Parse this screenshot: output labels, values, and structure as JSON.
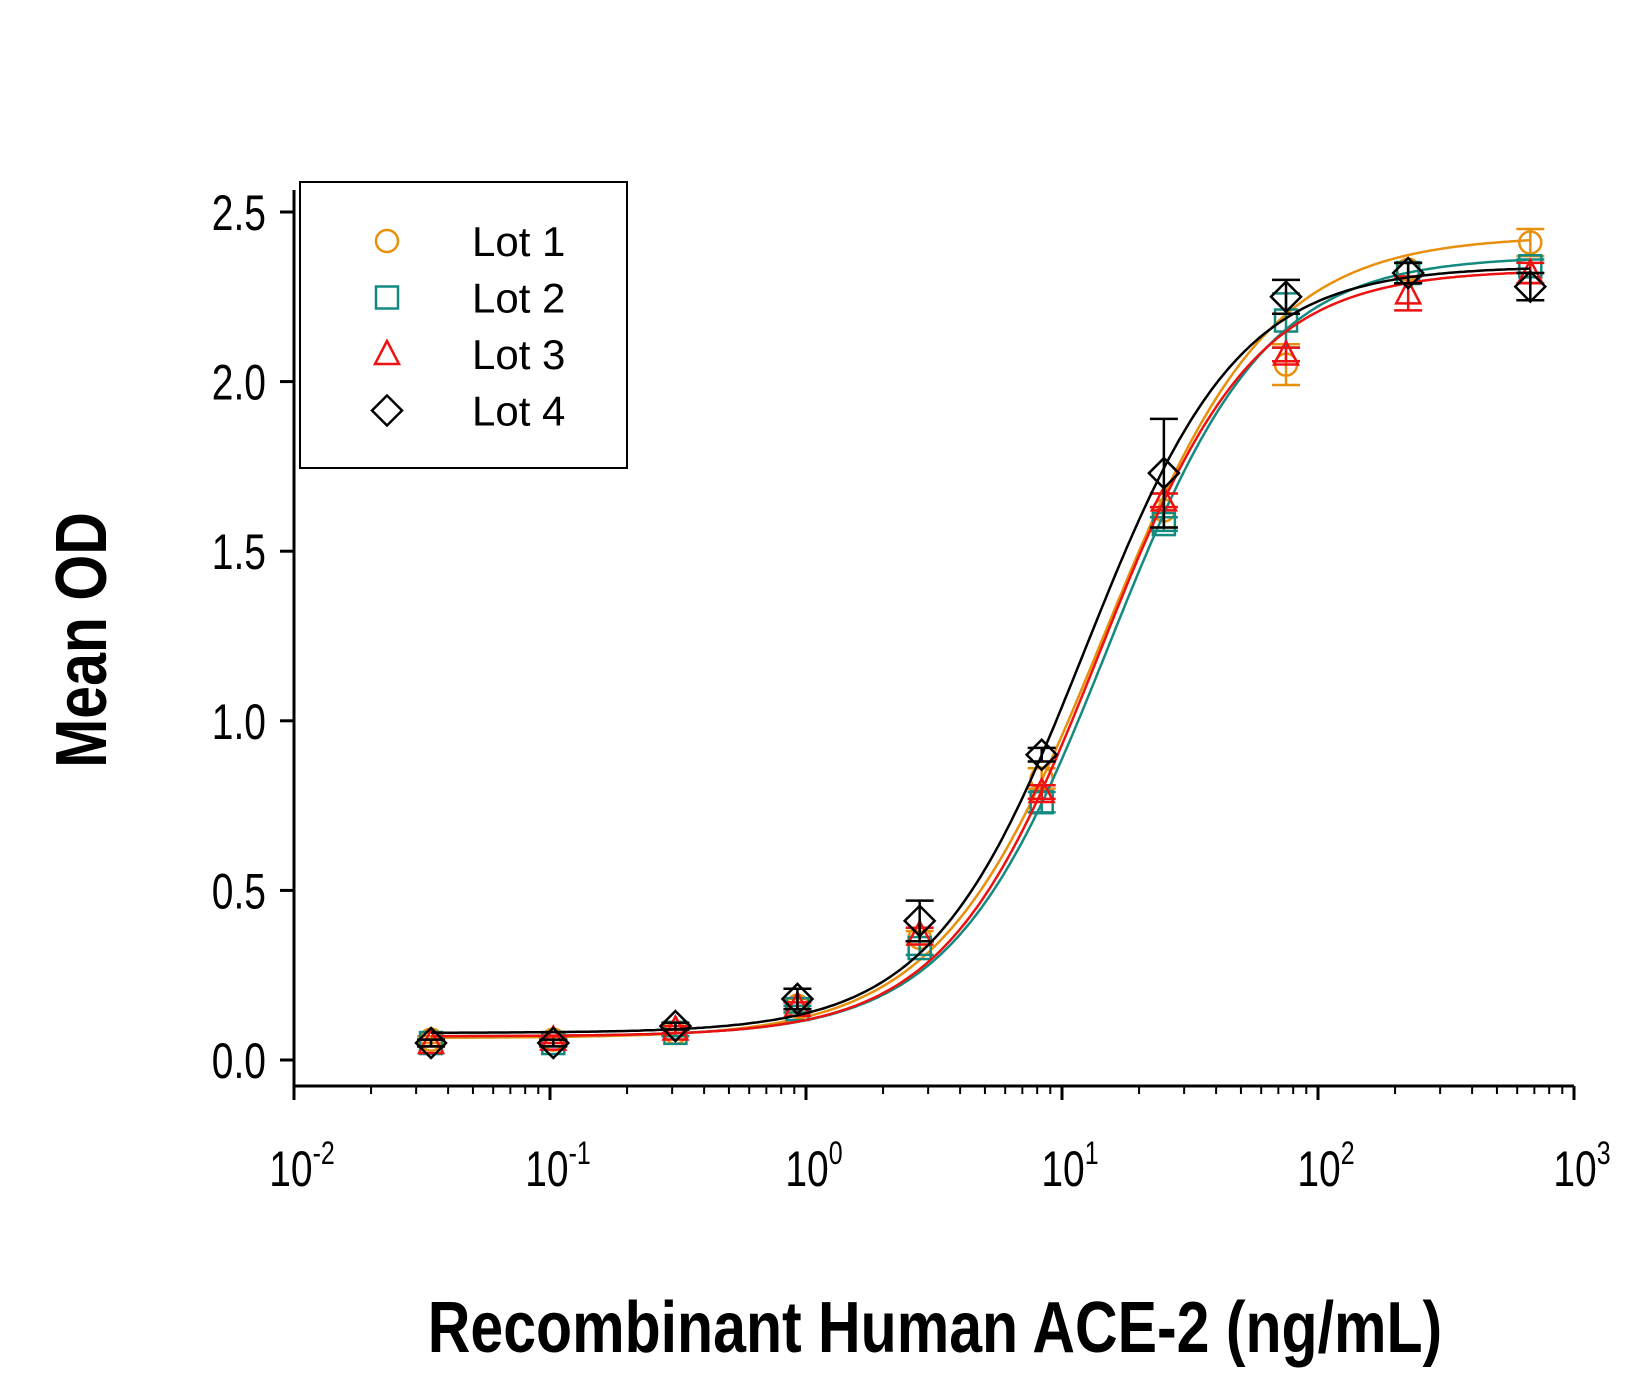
{
  "chart_data": {
    "type": "scatter",
    "title": "",
    "xlabel": "Recombinant Human ACE-2 (ng/mL)",
    "ylabel": "Mean OD",
    "xscale": "log",
    "xlim": [
      0.01,
      1000
    ],
    "ylim": [
      0,
      2.5
    ],
    "x_ticks": [
      {
        "base": "10",
        "exp": "-2",
        "value": 0.01
      },
      {
        "base": "10",
        "exp": "-1",
        "value": 0.1
      },
      {
        "base": "10",
        "exp": "0",
        "value": 1
      },
      {
        "base": "10",
        "exp": "1",
        "value": 10
      },
      {
        "base": "10",
        "exp": "2",
        "value": 100
      },
      {
        "base": "10",
        "exp": "3",
        "value": 1000
      }
    ],
    "y_ticks": [
      "0.0",
      "0.5",
      "1.0",
      "1.5",
      "2.0",
      "2.5"
    ],
    "grid": false,
    "legend_position": "top-left",
    "x": [
      0.0343,
      0.103,
      0.309,
      0.926,
      2.78,
      8.33,
      25,
      75,
      225,
      675
    ],
    "series": [
      {
        "name": "Lot 1",
        "marker": "circle",
        "color": "#E8900C",
        "values": [
          0.06,
          0.06,
          0.08,
          0.16,
          0.36,
          0.83,
          1.62,
          2.05,
          2.33,
          2.41
        ],
        "errors": [
          0.01,
          0.01,
          0.01,
          0.02,
          0.02,
          0.03,
          0.05,
          0.06,
          0.02,
          0.04
        ],
        "fit": {
          "bottom": 0.065,
          "top": 2.43,
          "ec50": 14.5,
          "hill": 1.35
        }
      },
      {
        "name": "Lot 2",
        "marker": "square",
        "color": "#138A80",
        "values": [
          0.05,
          0.05,
          0.08,
          0.15,
          0.33,
          0.76,
          1.58,
          2.18,
          2.32,
          2.34
        ],
        "errors": [
          0.01,
          0.01,
          0.01,
          0.01,
          0.02,
          0.03,
          0.02,
          0.08,
          0.03,
          0.02
        ],
        "fit": {
          "bottom": 0.07,
          "top": 2.37,
          "ec50": 15.2,
          "hill": 1.42
        }
      },
      {
        "name": "Lot 3",
        "marker": "triangle",
        "color": "#EE1111",
        "values": [
          0.05,
          0.06,
          0.09,
          0.16,
          0.37,
          0.79,
          1.65,
          2.08,
          2.26,
          2.32
        ],
        "errors": [
          0.01,
          0.01,
          0.01,
          0.01,
          0.02,
          0.02,
          0.02,
          0.02,
          0.05,
          0.03
        ],
        "fit": {
          "bottom": 0.07,
          "top": 2.33,
          "ec50": 14.0,
          "hill": 1.45
        }
      },
      {
        "name": "Lot 4",
        "marker": "diamond",
        "color": "#000000",
        "values": [
          0.05,
          0.05,
          0.1,
          0.18,
          0.41,
          0.9,
          1.73,
          2.25,
          2.32,
          2.28
        ],
        "errors": [
          0.01,
          0.01,
          0.01,
          0.03,
          0.06,
          0.02,
          0.16,
          0.05,
          0.03,
          0.04
        ],
        "fit": {
          "bottom": 0.08,
          "top": 2.34,
          "ec50": 12.3,
          "hill": 1.45
        }
      }
    ]
  }
}
